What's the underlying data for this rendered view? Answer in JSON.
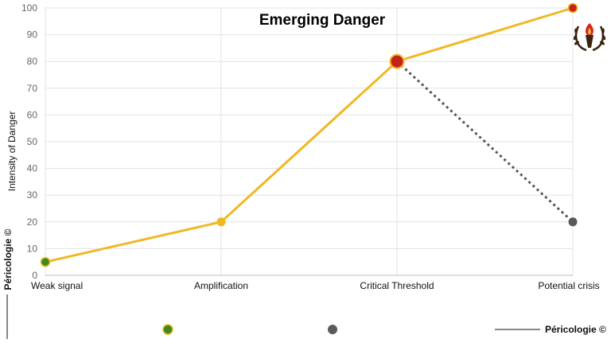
{
  "chart_data": {
    "type": "line",
    "title": "Emerging Danger",
    "ylabel": "Intensity of Danger",
    "xlabel": "",
    "ylim": [
      0,
      100
    ],
    "yticks": [
      0,
      10,
      20,
      30,
      40,
      50,
      60,
      70,
      80,
      90,
      100
    ],
    "categories": [
      "Weak signal",
      "Amplification",
      "Critical Threshold",
      "Potential crisis"
    ],
    "grid": true,
    "series": [
      {
        "values": [
          5,
          20,
          80,
          100
        ],
        "line_color": "#f0b823",
        "line_style": "solid",
        "marker_colors": [
          "#3e8a1d",
          "#f0b823",
          "#c4231a",
          "#c4231a"
        ]
      },
      {
        "values": [
          null,
          null,
          80,
          20
        ],
        "line_color": "#555555",
        "line_style": "dotted",
        "marker_colors": [
          null,
          null,
          null,
          "#5a5a5a"
        ]
      }
    ],
    "legend": {
      "placement": "bottom",
      "markers": [
        "#3e8a1d",
        "#5a5a5a"
      ]
    }
  },
  "credits": {
    "side": "Péricologie ©",
    "bottom": "Péricologie ©"
  },
  "logo": {
    "icon": "torch-laurel-logo"
  }
}
